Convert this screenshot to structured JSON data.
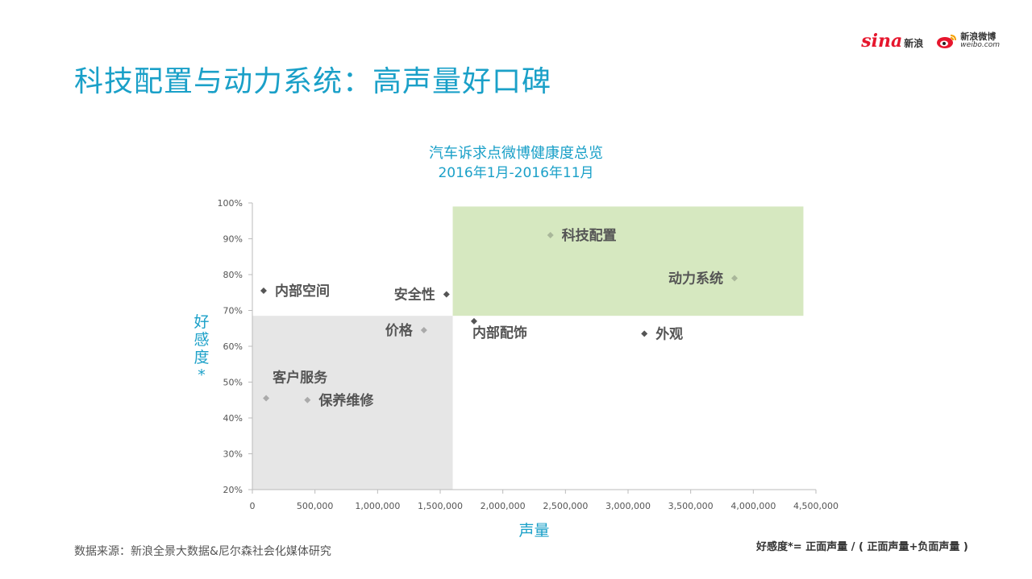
{
  "page": {
    "title": "科技配置与动力系统：高声量好口碑",
    "source": "数据来源：新浪全景大数据&尼尔森社会化媒体研究",
    "formula": "好感度*= 正面声量 / ( 正面声量+负面声量 )"
  },
  "logos": {
    "sina_word": "sina",
    "sina_cn": "新浪",
    "weibo_cn": "新浪微博",
    "weibo_url": "weibo.com"
  },
  "chart_data": {
    "type": "scatter",
    "title": "汽车诉求点微博健康度总览",
    "subtitle": "2016年1月-2016年11月",
    "xlabel": "声量",
    "ylabel": "好感度*",
    "xlim": [
      0,
      4500000
    ],
    "ylim": [
      0.2,
      1.0
    ],
    "x_ticks": [
      0,
      500000,
      1000000,
      1500000,
      2000000,
      2500000,
      3000000,
      3500000,
      4000000,
      4500000
    ],
    "x_tick_labels": [
      "0",
      "500,000",
      "1,000,000",
      "1,500,000",
      "2,000,000",
      "2,500,000",
      "3,000,000",
      "3,500,000",
      "4,000,000",
      "4,500,000"
    ],
    "y_ticks": [
      0.2,
      0.3,
      0.4,
      0.5,
      0.6,
      0.7,
      0.8,
      0.9,
      1.0
    ],
    "y_tick_labels": [
      "20%",
      "30%",
      "40%",
      "50%",
      "60%",
      "70%",
      "80%",
      "90%",
      "100%"
    ],
    "grid": false,
    "regions": [
      {
        "name": "high-volume-high-favor",
        "x": [
          1600000,
          4400000
        ],
        "y": [
          0.685,
          0.99
        ],
        "color": "#d6e8c0"
      },
      {
        "name": "low-volume-low-favor",
        "x": [
          0,
          1600000
        ],
        "y": [
          0.2,
          0.685
        ],
        "color": "#e6e6e6"
      }
    ],
    "points": [
      {
        "label": "科技配置",
        "x": 2380000,
        "y": 0.91,
        "color": "#a9b79a",
        "label_pos": "right"
      },
      {
        "label": "动力系统",
        "x": 3850000,
        "y": 0.79,
        "color": "#a9b79a",
        "label_pos": "left"
      },
      {
        "label": "内部空间",
        "x": 90000,
        "y": 0.755,
        "color": "#555555",
        "label_pos": "right"
      },
      {
        "label": "安全性",
        "x": 1550000,
        "y": 0.745,
        "color": "#555555",
        "label_pos": "left"
      },
      {
        "label": "价格",
        "x": 1370000,
        "y": 0.645,
        "color": "#aaaaaa",
        "label_pos": "left"
      },
      {
        "label": "内部配饰",
        "x": 1770000,
        "y": 0.67,
        "color": "#555555",
        "label_pos": "below-right"
      },
      {
        "label": "外观",
        "x": 3130000,
        "y": 0.635,
        "color": "#555555",
        "label_pos": "right"
      },
      {
        "label": "客户服务",
        "x": 110000,
        "y": 0.455,
        "color": "#aaaaaa",
        "label_pos": "above-right"
      },
      {
        "label": "保养维修",
        "x": 440000,
        "y": 0.45,
        "color": "#aaaaaa",
        "label_pos": "right"
      }
    ]
  }
}
